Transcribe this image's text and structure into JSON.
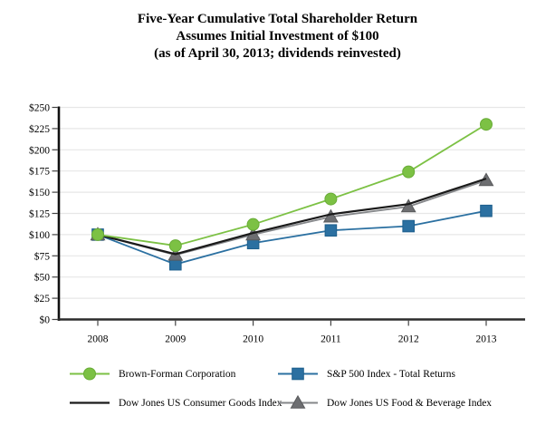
{
  "title": {
    "line1": "Five-Year Cumulative Total Shareholder Return",
    "line2": "Assumes Initial Investment of $100",
    "line3": "(as of April 30, 2013; dividends reinvested)"
  },
  "chart_data": {
    "type": "line",
    "title_lines": [
      "Five-Year Cumulative Total Shareholder Return",
      "Assumes Initial Investment of $100",
      "(as of April 30, 2013; dividends reinvested)"
    ],
    "categories": [
      "2008",
      "2009",
      "2010",
      "2011",
      "2012",
      "2013"
    ],
    "series": [
      {
        "name": "Brown-Forman Corporation",
        "marker": "circle",
        "line_color": "#7CC144",
        "marker_fill": "#7CC144",
        "marker_outline": "#68AC36",
        "values": [
          100,
          87,
          112,
          142,
          174,
          230
        ]
      },
      {
        "name": "S&P 500 Index - Total Returns",
        "marker": "square",
        "line_color": "#2B70A1",
        "marker_fill": "#2B70A1",
        "marker_outline": "#1D5F8D",
        "values": [
          100,
          65,
          90,
          105,
          110,
          128
        ]
      },
      {
        "name": "Dow Jones US Consumer Goods Index",
        "marker": "none",
        "line_color": "#1A1A1A",
        "marker_fill": "#1A1A1A",
        "marker_outline": "#1A1A1A",
        "values": [
          100,
          77,
          102,
          124,
          136,
          166
        ]
      },
      {
        "name": "Dow Jones US Food & Beverage Index",
        "marker": "triangle",
        "line_color": "#85878A",
        "marker_fill": "#6D6E71",
        "marker_outline": "#58595B",
        "values": [
          100,
          76,
          100,
          121,
          133,
          164
        ]
      }
    ],
    "ylim": [
      0,
      250
    ],
    "ytick_interval": 25,
    "ytick_labels": [
      "$0",
      "$25",
      "$50",
      "$75",
      "$100",
      "$125",
      "$150",
      "$175",
      "$200",
      "$225",
      "$250"
    ],
    "xlabel": "",
    "ylabel": "",
    "grid": true,
    "gridline_color": "#E7E7E7",
    "axis_color": "#2B2B2B",
    "legend_position": "bottom"
  }
}
